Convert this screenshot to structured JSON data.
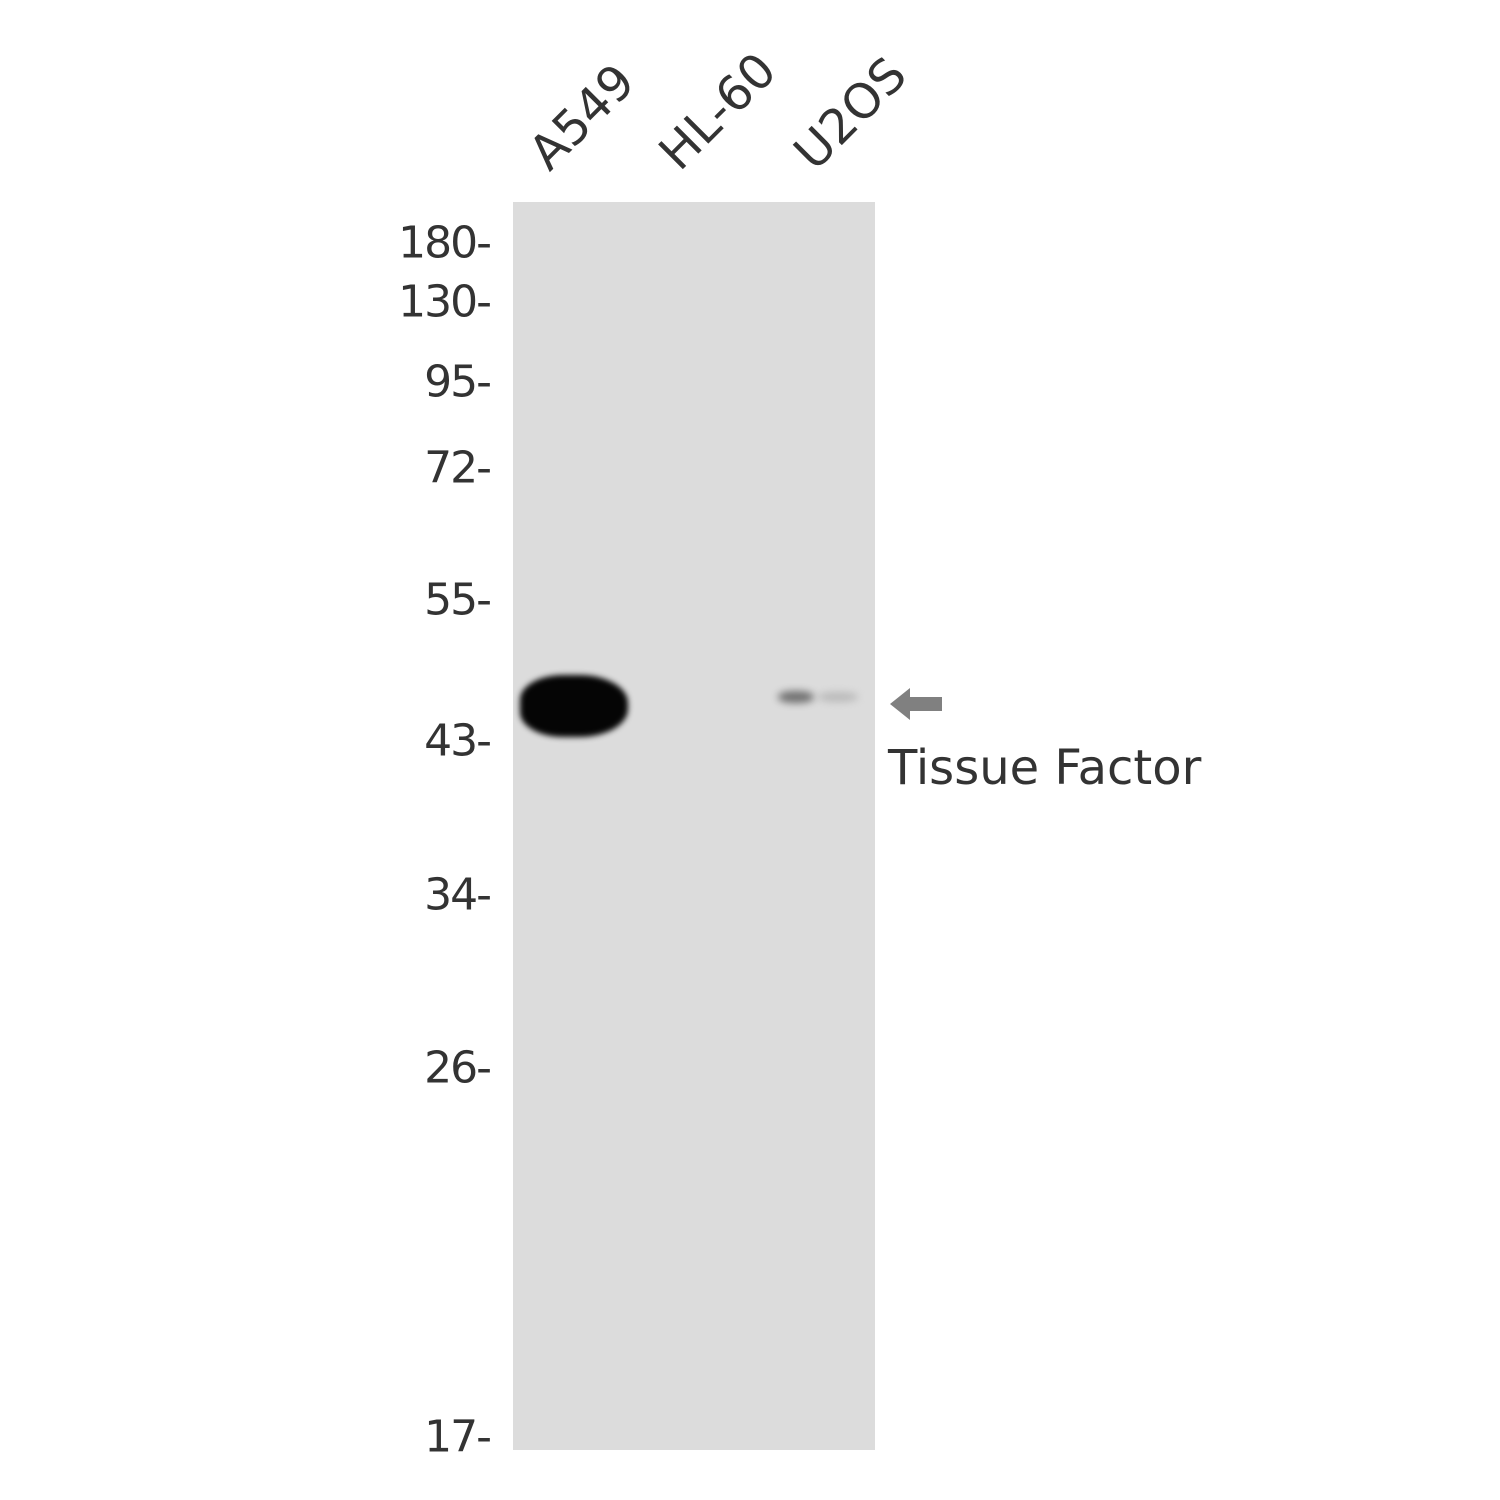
{
  "lanes": [
    "A549",
    "HL-60",
    "U2OS"
  ],
  "markers": [
    "180-",
    "130-",
    "95-",
    "72-",
    "55-",
    "43-",
    "34-",
    "26-",
    "17-"
  ],
  "target_label": "Tissue Factor",
  "bands": [
    {
      "lane": "A549",
      "intensity": "strong"
    },
    {
      "lane": "HL-60",
      "intensity": "none"
    },
    {
      "lane": "U2OS",
      "intensity": "weak"
    }
  ],
  "icons": {
    "arrow": "arrow-left-icon"
  },
  "colors": {
    "membrane": "#dcdcdc",
    "arrow": "#808080",
    "band": "#050505"
  }
}
